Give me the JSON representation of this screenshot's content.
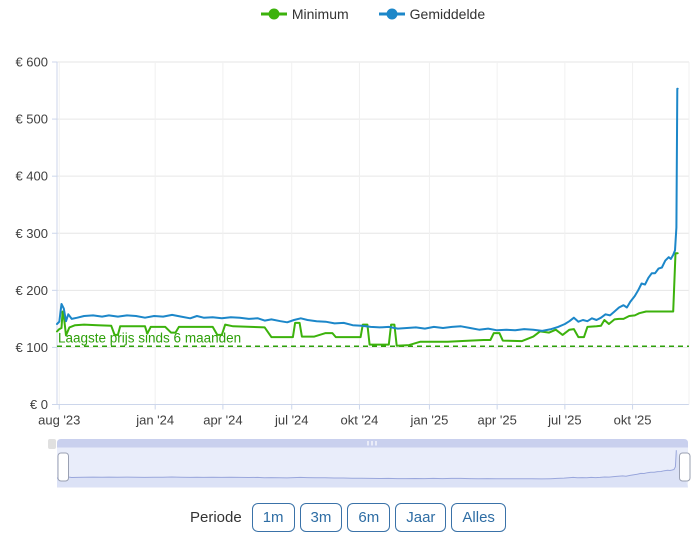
{
  "legend": {
    "items": [
      {
        "label": "Minimum",
        "color": "#3cb20c"
      },
      {
        "label": "Gemiddelde",
        "color": "#1c87c9"
      }
    ]
  },
  "period": {
    "label": "Periode",
    "buttons": [
      "1m",
      "3m",
      "6m",
      "Jaar",
      "Alles"
    ],
    "accent": "#2e6da4"
  },
  "chart_data": {
    "type": "line",
    "title": "",
    "xlabel": "",
    "ylabel": "",
    "currency": "EUR",
    "x_unit": "months since data start (aug 2023)",
    "x_range": [
      0,
      28
    ],
    "ylim": [
      0,
      600
    ],
    "grid": true,
    "legend_position": "top-center",
    "y_ticks": [
      {
        "v": 0,
        "label": "€ 0"
      },
      {
        "v": 100,
        "label": "€ 100"
      },
      {
        "v": 200,
        "label": "€ 200"
      },
      {
        "v": 300,
        "label": "€ 300"
      },
      {
        "v": 400,
        "label": "€ 400"
      },
      {
        "v": 500,
        "label": "€ 500"
      },
      {
        "v": 600,
        "label": "€ 600"
      }
    ],
    "x_ticks": [
      {
        "m": 0.1,
        "label": "aug '23"
      },
      {
        "m": 4.35,
        "label": "jan '24"
      },
      {
        "m": 7.35,
        "label": "apr '24"
      },
      {
        "m": 10.4,
        "label": "jul '24"
      },
      {
        "m": 13.4,
        "label": "okt '24"
      },
      {
        "m": 16.5,
        "label": "jan '25"
      },
      {
        "m": 19.5,
        "label": "apr '25"
      },
      {
        "m": 22.5,
        "label": "jul '25"
      },
      {
        "m": 25.5,
        "label": "okt '25"
      }
    ],
    "plotline": {
      "value": 102,
      "label": "Laagste prijs sinds 6 maanden",
      "color": "#2ea00a",
      "dash": "5,4"
    },
    "series": [
      {
        "name": "Minimum",
        "color": "#3cb20c",
        "points": [
          [
            0,
            128
          ],
          [
            0.1,
            132
          ],
          [
            0.2,
            134
          ],
          [
            0.25,
            163
          ],
          [
            0.3,
            155
          ],
          [
            0.4,
            121
          ],
          [
            0.55,
            135
          ],
          [
            0.8,
            139
          ],
          [
            1.2,
            140
          ],
          [
            1.8,
            139
          ],
          [
            2.4,
            138
          ],
          [
            2.55,
            122
          ],
          [
            2.7,
            122
          ],
          [
            2.8,
            137
          ],
          [
            3.4,
            137
          ],
          [
            3.9,
            137
          ],
          [
            4.0,
            124
          ],
          [
            4.15,
            136
          ],
          [
            4.8,
            136
          ],
          [
            5.05,
            126
          ],
          [
            5.25,
            126
          ],
          [
            5.4,
            136
          ],
          [
            6.2,
            136
          ],
          [
            6.9,
            136
          ],
          [
            7.1,
            122
          ],
          [
            7.3,
            122
          ],
          [
            7.45,
            140
          ],
          [
            7.8,
            137
          ],
          [
            8.6,
            136
          ],
          [
            9.2,
            135
          ],
          [
            9.5,
            118
          ],
          [
            10.1,
            118
          ],
          [
            10.45,
            118
          ],
          [
            10.55,
            143
          ],
          [
            10.75,
            143
          ],
          [
            10.85,
            119
          ],
          [
            11.4,
            119
          ],
          [
            11.9,
            125
          ],
          [
            12.2,
            125
          ],
          [
            12.35,
            118
          ],
          [
            13.2,
            118
          ],
          [
            13.45,
            118
          ],
          [
            13.55,
            140
          ],
          [
            13.75,
            140
          ],
          [
            13.85,
            105
          ],
          [
            14.5,
            105
          ],
          [
            14.7,
            105
          ],
          [
            14.8,
            140
          ],
          [
            14.95,
            140
          ],
          [
            15.05,
            103
          ],
          [
            15.6,
            104
          ],
          [
            16.1,
            110
          ],
          [
            17.3,
            110
          ],
          [
            18.3,
            112
          ],
          [
            18.9,
            113
          ],
          [
            19.2,
            113
          ],
          [
            19.35,
            125
          ],
          [
            19.6,
            125
          ],
          [
            19.75,
            112
          ],
          [
            20.6,
            111
          ],
          [
            21.1,
            119
          ],
          [
            21.4,
            128
          ],
          [
            21.8,
            126
          ],
          [
            22.1,
            131
          ],
          [
            22.4,
            122
          ],
          [
            22.7,
            131
          ],
          [
            22.9,
            132
          ],
          [
            23.1,
            118
          ],
          [
            23.35,
            118
          ],
          [
            23.5,
            136
          ],
          [
            23.9,
            137
          ],
          [
            24.1,
            138
          ],
          [
            24.25,
            148
          ],
          [
            24.45,
            141
          ],
          [
            24.7,
            149
          ],
          [
            24.9,
            150
          ],
          [
            25.1,
            150
          ],
          [
            25.35,
            155
          ],
          [
            25.6,
            156
          ],
          [
            25.8,
            160
          ],
          [
            26.1,
            163
          ],
          [
            26.5,
            163
          ],
          [
            27.0,
            163
          ],
          [
            27.3,
            163
          ],
          [
            27.4,
            265
          ],
          [
            27.5,
            265
          ]
        ]
      },
      {
        "name": "Gemiddelde",
        "color": "#1c87c9",
        "points": [
          [
            0,
            141
          ],
          [
            0.1,
            145
          ],
          [
            0.2,
            176
          ],
          [
            0.3,
            168
          ],
          [
            0.4,
            146
          ],
          [
            0.5,
            158
          ],
          [
            0.65,
            150
          ],
          [
            0.9,
            152
          ],
          [
            1.2,
            155
          ],
          [
            1.6,
            156
          ],
          [
            2.0,
            154
          ],
          [
            2.3,
            156
          ],
          [
            2.7,
            154
          ],
          [
            3.1,
            156
          ],
          [
            3.5,
            155
          ],
          [
            3.9,
            152
          ],
          [
            4.3,
            155
          ],
          [
            4.7,
            154
          ],
          [
            5.1,
            157
          ],
          [
            5.5,
            154
          ],
          [
            5.9,
            151
          ],
          [
            6.2,
            155
          ],
          [
            6.5,
            152
          ],
          [
            6.9,
            153
          ],
          [
            7.3,
            151
          ],
          [
            7.7,
            153
          ],
          [
            8.1,
            152
          ],
          [
            8.5,
            150
          ],
          [
            8.9,
            151
          ],
          [
            9.2,
            147
          ],
          [
            9.5,
            149
          ],
          [
            9.9,
            146
          ],
          [
            10.2,
            144
          ],
          [
            10.5,
            148
          ],
          [
            10.8,
            151
          ],
          [
            11.1,
            148
          ],
          [
            11.5,
            146
          ],
          [
            11.9,
            145
          ],
          [
            12.3,
            142
          ],
          [
            12.7,
            143
          ],
          [
            13.1,
            139
          ],
          [
            13.5,
            138
          ],
          [
            13.9,
            136
          ],
          [
            14.3,
            135
          ],
          [
            14.7,
            136
          ],
          [
            15.1,
            133
          ],
          [
            15.5,
            134
          ],
          [
            15.9,
            135
          ],
          [
            16.3,
            133
          ],
          [
            16.7,
            136
          ],
          [
            17.1,
            134
          ],
          [
            17.5,
            136
          ],
          [
            17.9,
            137
          ],
          [
            18.3,
            134
          ],
          [
            18.7,
            131
          ],
          [
            19.1,
            133
          ],
          [
            19.5,
            130
          ],
          [
            19.9,
            131
          ],
          [
            20.3,
            130
          ],
          [
            20.7,
            132
          ],
          [
            21.1,
            131
          ],
          [
            21.5,
            129
          ],
          [
            21.9,
            132
          ],
          [
            22.2,
            136
          ],
          [
            22.5,
            141
          ],
          [
            22.7,
            146
          ],
          [
            22.9,
            152
          ],
          [
            23.1,
            145
          ],
          [
            23.3,
            148
          ],
          [
            23.5,
            146
          ],
          [
            23.7,
            151
          ],
          [
            23.9,
            148
          ],
          [
            24.1,
            152
          ],
          [
            24.3,
            158
          ],
          [
            24.5,
            156
          ],
          [
            24.7,
            163
          ],
          [
            24.9,
            170
          ],
          [
            25.1,
            174
          ],
          [
            25.25,
            170
          ],
          [
            25.4,
            180
          ],
          [
            25.6,
            190
          ],
          [
            25.75,
            200
          ],
          [
            25.9,
            212
          ],
          [
            26.05,
            210
          ],
          [
            26.2,
            222
          ],
          [
            26.35,
            230
          ],
          [
            26.5,
            230
          ],
          [
            26.65,
            238
          ],
          [
            26.8,
            240
          ],
          [
            26.95,
            252
          ],
          [
            27.1,
            258
          ],
          [
            27.2,
            255
          ],
          [
            27.3,
            262
          ],
          [
            27.38,
            270
          ],
          [
            27.44,
            310
          ],
          [
            27.48,
            553
          ],
          [
            27.5,
            553
          ]
        ]
      }
    ],
    "navigator": {
      "source_series": "Gemiddelde",
      "bg": "#e9edfa",
      "line": "#9aa7dc",
      "fill": "#dce2f6",
      "track": "#c9d0ee",
      "grip": "#f5f6fb",
      "handle_fill": "#ffffff",
      "handle_border": "#9aa0b2",
      "button": "#e0e0e0"
    },
    "axis": {
      "line_color": "#ccd6eb",
      "grid_h_color": "#e6e6e6",
      "grid_v_color": "#f0f0f0",
      "label_color": "#404040"
    }
  }
}
